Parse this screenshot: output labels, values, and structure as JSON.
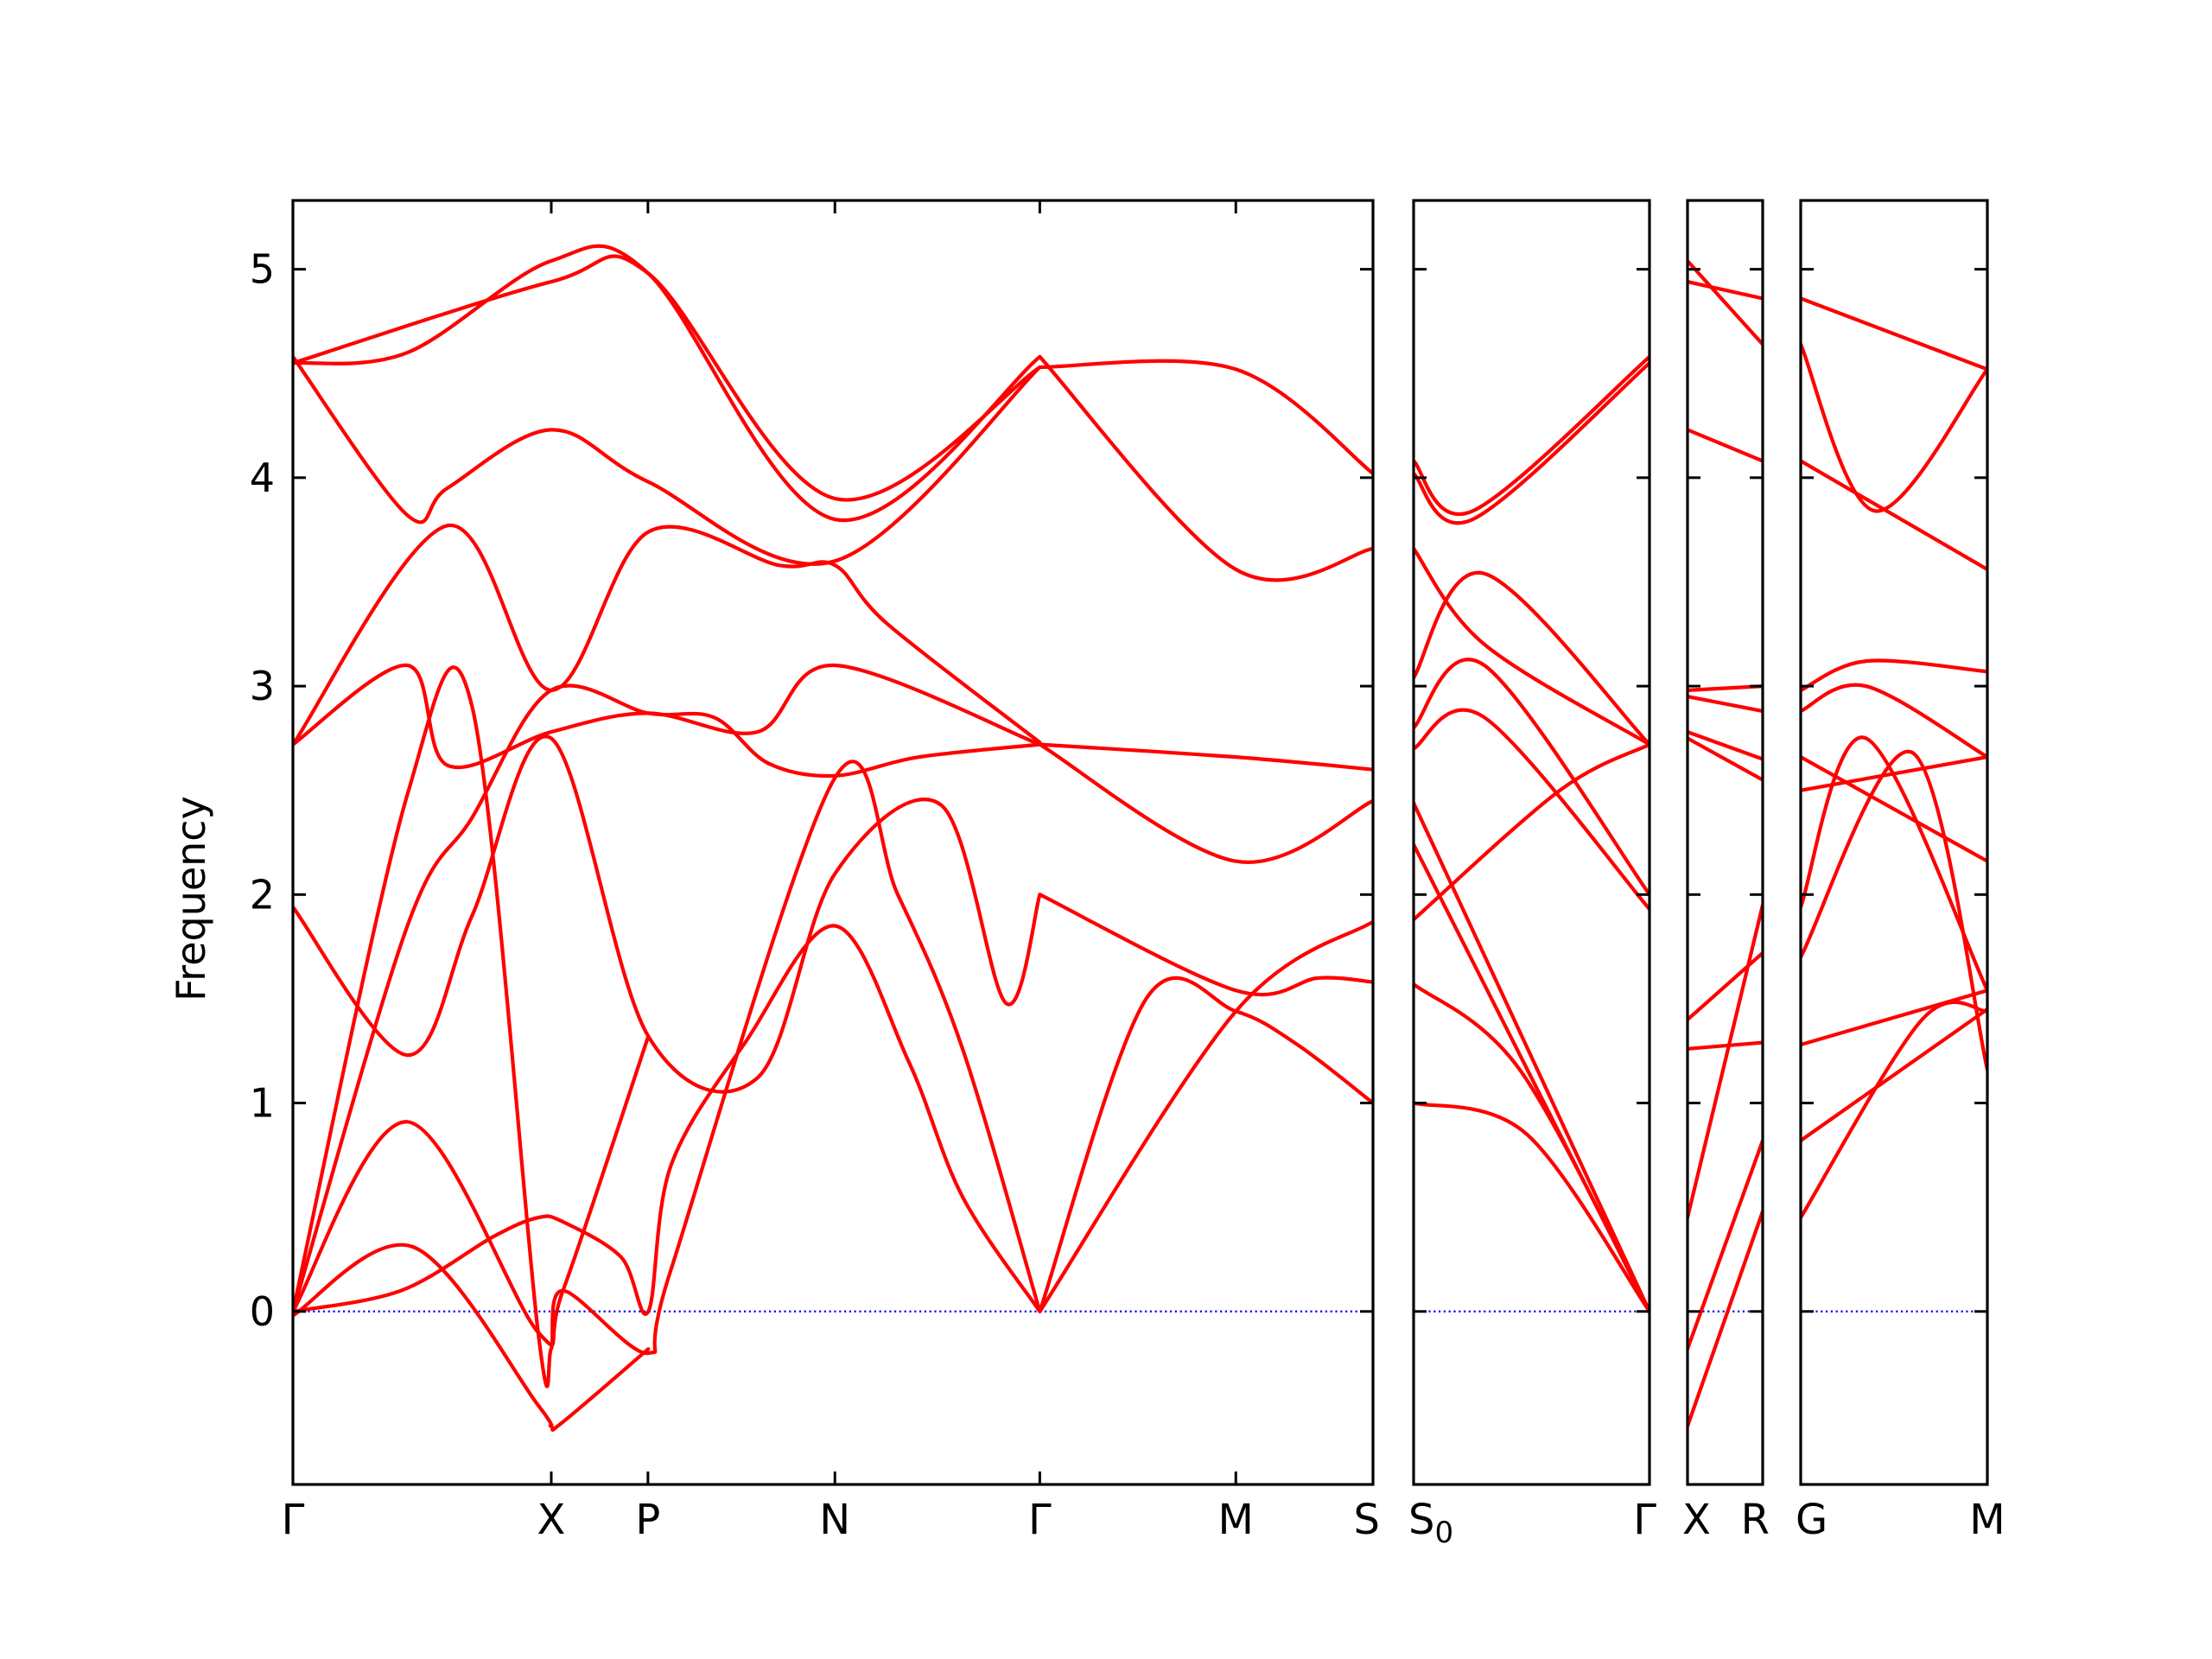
{
  "chart_data": {
    "type": "line",
    "title": "",
    "xlabel": "",
    "ylabel": "Frequency",
    "ylim": [
      -0.83,
      5.33
    ],
    "yticks": [
      0,
      1,
      2,
      3,
      4,
      5
    ],
    "grid": false,
    "legend": "none",
    "colors": {
      "bands": "#ff0000",
      "zero_line": "#0000ff",
      "axes": "#000000"
    },
    "panels": [
      {
        "xlabels": [
          "Γ",
          "X",
          "P",
          "N",
          "Γ",
          "M",
          "S"
        ],
        "x": [
          0,
          0.2392,
          0.3287,
          0.5018,
          0.6915,
          0.873,
          1.0
        ],
        "series": [
          {
            "x": [
              0,
              0.111,
              0.227,
              0.239,
              0.25,
              0.329
            ],
            "values": [
              -0.02,
              0.31,
              -0.45,
              -0.55,
              -0.53,
              -0.18
            ]
          },
          {
            "x": [
              0,
              0.106,
              0.227,
              0.25,
              0.329
            ],
            "values": [
              0,
              0.91,
              -0.1,
              0.1,
              1.32
            ]
          },
          {
            "x": [
              0,
              0.1,
              0.186,
              0.227,
              0.25,
              0.304,
              0.329,
              0.35,
              0.42,
              0.5018,
              0.57,
              0.62,
              0.6915
            ],
            "values": [
              0,
              0.1,
              0.36,
              0.45,
              0.43,
              0.26,
              0,
              0.7,
              1.3,
              1.85,
              1.2,
              0.55,
              0
            ]
          },
          {
            "x": [
              0,
              0.106,
              0.166,
              0.239,
              0.329,
              0.43,
              0.5018,
              0.6,
              0.66,
              0.6915
            ],
            "values": [
              1.94,
              1.23,
              1.9,
              2.75,
              1.32,
              1.12,
              2.1,
              2.43,
              1.48,
              2.0
            ]
          },
          {
            "x": [
              0,
              0.106,
              0.166,
              0.227,
              0.239,
              0.25,
              0.329,
              0.35,
              0.5018,
              0.56,
              0.62,
              0.6915
            ],
            "values": [
              0,
              2.48,
              2.9,
              -0.1,
              -0.18,
              0.1,
              -0.2,
              0.2,
              2.56,
              2.0,
              1.26,
              0
            ]
          },
          {
            "x": [
              0,
              0.106,
              0.166,
              0.239,
              0.329,
              0.39,
              0.44,
              0.5018,
              0.58,
              0.6915
            ],
            "values": [
              0,
              1.85,
              2.37,
              2.98,
              2.87,
              2.85,
              2.63,
              2.57,
              2.66,
              2.72
            ]
          },
          {
            "x": [
              0,
              0.106,
              0.143,
              0.239,
              0.329,
              0.43,
              0.5018,
              0.6915
            ],
            "values": [
              2.72,
              3.1,
              2.62,
              2.78,
              2.87,
              2.78,
              3.1,
              2.72
            ]
          },
          {
            "x": [
              0,
              0.143,
              0.239,
              0.329,
              0.45,
              0.5018,
              0.55,
              0.6915
            ],
            "values": [
              2.72,
              3.77,
              2.98,
              3.74,
              3.58,
              3.58,
              3.3,
              2.73
            ]
          },
          {
            "x": [
              0,
              0.106,
              0.143,
              0.239,
              0.329,
              0.5018,
              0.6915
            ],
            "values": [
              4.58,
              3.82,
              3.95,
              4.23,
              3.98,
              3.6,
              4.53
            ]
          },
          {
            "x": [
              0,
              0.106,
              0.239,
              0.329,
              0.5018,
              0.6915
            ],
            "values": [
              4.55,
              4.6,
              5.04,
              4.98,
              3.8,
              4.58
            ]
          },
          {
            "x": [
              0,
              0.239,
              0.329,
              0.5018,
              0.6915
            ],
            "values": [
              4.55,
              4.94,
              4.98,
              3.9,
              4.53
            ]
          },
          {
            "x": [
              0.6915,
              0.79,
              0.873,
              0.93,
              1.0
            ],
            "values": [
              0,
              1.5,
              1.44,
              1.28,
              1.0
            ]
          },
          {
            "x": [
              0.6915,
              0.873,
              1.0
            ],
            "values": [
              0,
              1.44,
              1.87
            ]
          },
          {
            "x": [
              0.6915,
              0.873,
              0.95,
              1.0
            ],
            "values": [
              2.0,
              1.54,
              1.6,
              1.58
            ]
          },
          {
            "x": [
              0.6915,
              0.873,
              1.0
            ],
            "values": [
              2.72,
              2.66,
              2.6
            ]
          },
          {
            "x": [
              0.6915,
              0.873,
              1.0
            ],
            "values": [
              2.72,
              2.16,
              2.45
            ]
          },
          {
            "x": [
              0.6915,
              0.873,
              1.0
            ],
            "values": [
              4.53,
              4.52,
              4.02
            ]
          },
          {
            "x": [
              0.6915,
              0.873,
              1.0
            ],
            "values": [
              4.58,
              3.56,
              3.66
            ]
          }
        ]
      },
      {
        "xlabels": [
          "S0",
          "Γ"
        ],
        "x": [
          0,
          1.0
        ],
        "series": [
          {
            "x": [
              0,
              0.48,
              1.0
            ],
            "values": [
              1.0,
              0.85,
              0
            ]
          },
          {
            "x": [
              0,
              0.45,
              1.0
            ],
            "values": [
              1.57,
              1.16,
              0
            ]
          },
          {
            "x": [
              0,
              1.0
            ],
            "values": [
              2.24,
              0
            ]
          },
          {
            "x": [
              0,
              1.0
            ],
            "values": [
              2.44,
              0
            ]
          },
          {
            "x": [
              0,
              0.62,
              1.0
            ],
            "values": [
              1.88,
              2.5,
              2.72
            ]
          },
          {
            "x": [
              0,
              0.3,
              1.0
            ],
            "values": [
              2.8,
              3.1,
              2.0
            ]
          },
          {
            "x": [
              0,
              0.3,
              1.0
            ],
            "values": [
              2.7,
              2.85,
              1.93
            ]
          },
          {
            "x": [
              0,
              0.3,
              1.0
            ],
            "values": [
              3.04,
              3.54,
              2.72
            ]
          },
          {
            "x": [
              0,
              0.3,
              1.0
            ],
            "values": [
              3.66,
              3.2,
              2.72
            ]
          },
          {
            "x": [
              0,
              0.25,
              1.0
            ],
            "values": [
              4.08,
              3.84,
              4.58
            ]
          },
          {
            "x": [
              0,
              0.25,
              1.0
            ],
            "values": [
              4.02,
              3.8,
              4.55
            ]
          }
        ]
      },
      {
        "xlabels": [
          "X",
          "R"
        ],
        "x": [
          0,
          1.0
        ],
        "series": [
          {
            "x": [
              0,
              1.0
            ],
            "values": [
              -0.55,
              0.48
            ]
          },
          {
            "x": [
              0,
              1.0
            ],
            "values": [
              -0.18,
              0.82
            ]
          },
          {
            "x": [
              0,
              1.0
            ],
            "values": [
              0.45,
              1.95
            ]
          },
          {
            "x": [
              0,
              1.0
            ],
            "values": [
              1.26,
              1.29
            ]
          },
          {
            "x": [
              0,
              1.0
            ],
            "values": [
              1.4,
              1.72
            ]
          },
          {
            "x": [
              0,
              1.0
            ],
            "values": [
              2.75,
              2.55
            ]
          },
          {
            "x": [
              0,
              1.0
            ],
            "values": [
              2.78,
              2.65
            ]
          },
          {
            "x": [
              0,
              1.0
            ],
            "values": [
              2.98,
              3.0
            ]
          },
          {
            "x": [
              0,
              1.0
            ],
            "values": [
              2.95,
              2.88
            ]
          },
          {
            "x": [
              0,
              1.0
            ],
            "values": [
              4.23,
              4.08
            ]
          },
          {
            "x": [
              0,
              1.0
            ],
            "values": [
              4.94,
              4.86
            ]
          },
          {
            "x": [
              0,
              1.0
            ],
            "values": [
              5.04,
              4.64
            ]
          }
        ]
      },
      {
        "xlabels": [
          "G",
          "M"
        ],
        "x": [
          0,
          1.0
        ],
        "series": [
          {
            "x": [
              0,
              0.65,
              1.0
            ],
            "values": [
              0.45,
              1.4,
              1.44
            ]
          },
          {
            "x": [
              0,
              1.0
            ],
            "values": [
              0.82,
              1.45
            ]
          },
          {
            "x": [
              0,
              1.0
            ],
            "values": [
              1.28,
              1.54
            ]
          },
          {
            "x": [
              0,
              0.6,
              1.0
            ],
            "values": [
              1.7,
              2.68,
              1.16
            ]
          },
          {
            "x": [
              0,
              0.35,
              1.0
            ],
            "values": [
              1.94,
              2.75,
              1.54
            ]
          },
          {
            "x": [
              0,
              1.0
            ],
            "values": [
              2.5,
              2.66
            ]
          },
          {
            "x": [
              0,
              1.0
            ],
            "values": [
              2.66,
              2.16
            ]
          },
          {
            "x": [
              0,
              0.35,
              1.0
            ],
            "values": [
              2.88,
              3.0,
              2.66
            ]
          },
          {
            "x": [
              0,
              0.35,
              1.0
            ],
            "values": [
              2.98,
              3.12,
              3.07
            ]
          },
          {
            "x": [
              0,
              1.0
            ],
            "values": [
              4.08,
              3.56
            ]
          },
          {
            "x": [
              0,
              0.4,
              1.0
            ],
            "values": [
              4.64,
              3.84,
              4.52
            ]
          },
          {
            "x": [
              0,
              1.0
            ],
            "values": [
              4.86,
              4.52
            ]
          }
        ]
      }
    ]
  }
}
